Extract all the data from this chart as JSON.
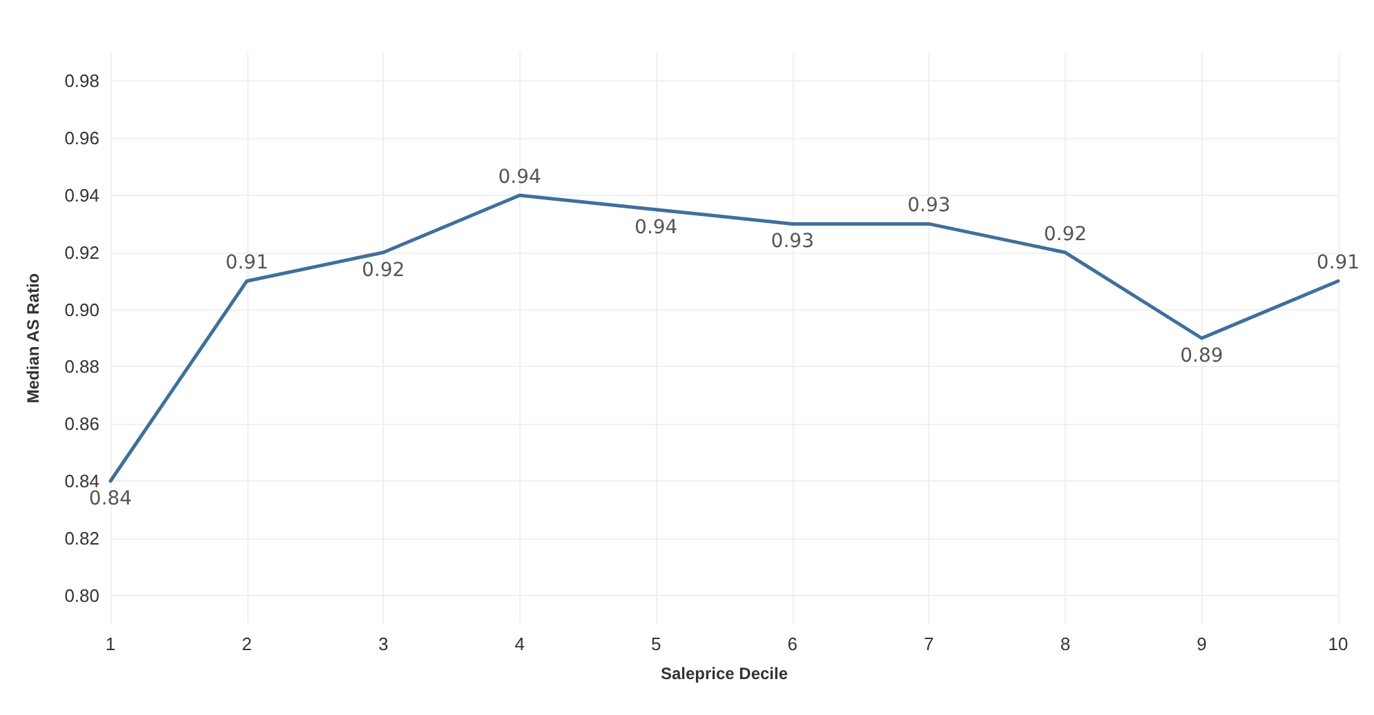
{
  "chart_data": {
    "type": "line",
    "xlabel": "Saleprice Decile",
    "ylabel": "Median AS Ratio",
    "x": [
      1,
      2,
      3,
      4,
      5,
      6,
      7,
      8,
      9,
      10
    ],
    "series": [
      {
        "color": "#3f6f9c",
        "values": [
          0.84,
          0.91,
          0.92,
          0.94,
          0.935,
          0.93,
          0.93,
          0.92,
          0.89,
          0.91
        ],
        "value_labels": [
          "0.84",
          "0.91",
          "0.92",
          "0.94",
          "0.94",
          "0.93",
          "0.93",
          "0.92",
          "0.89",
          "0.91"
        ]
      }
    ],
    "xlim": [
      1,
      10
    ],
    "xticks": [
      1,
      2,
      3,
      4,
      5,
      6,
      7,
      8,
      9,
      10
    ],
    "ylim": [
      0.79,
      0.99
    ],
    "yticks": [
      {
        "value": 0.8,
        "label": "0.80"
      },
      0.82,
      0.84,
      0.86,
      0.88,
      {
        "value": 0.9,
        "label": "0.90"
      },
      0.92,
      0.94,
      0.96,
      0.98
    ],
    "grid": true,
    "marker": "none",
    "line_style": "solid"
  }
}
